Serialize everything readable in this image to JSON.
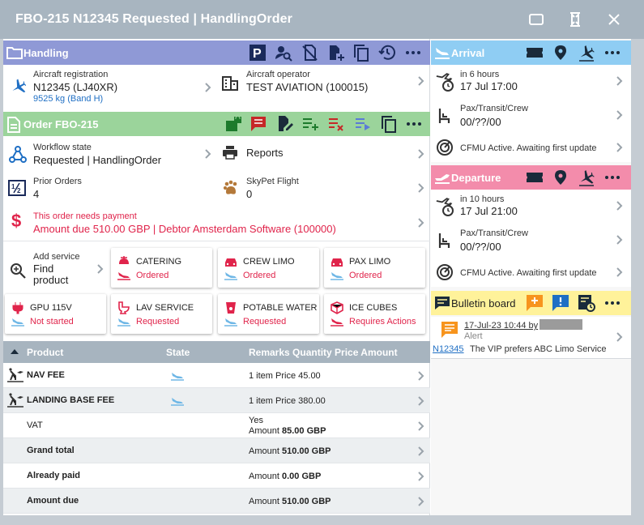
{
  "window": {
    "title": "FBO-215 N12345 Requested | HandlingOrder"
  },
  "colors": {
    "handling": "#8f99d6",
    "order": "#9bd49b",
    "arrival": "#8fcdf3",
    "departure": "#f38cab",
    "bulletin": "#fff29a",
    "alert_red": "#e0244b",
    "table_header": "#a7b4bf"
  },
  "handling": {
    "title": "Handling",
    "aircraft_registration_label": "Aircraft registration",
    "aircraft_registration_value": "N12345 (LJ40XR)",
    "aircraft_weight": "9525 kg (Band H)",
    "aircraft_operator_label": "Aircraft operator",
    "aircraft_operator_value": "TEST AVIATION (100015)"
  },
  "order": {
    "title": "Order FBO-215",
    "workflow_label": "Workflow state",
    "workflow_value": "Requested | HandlingOrder",
    "reports_label": "Reports",
    "prior_orders_label": "Prior Orders",
    "prior_orders_value": "4",
    "skypet_label": "SkyPet Flight",
    "skypet_value": "0",
    "payment_warning": "This order needs payment",
    "amount_due_line": "Amount due 510.00 GBP | Debtor Amsterdam Software (100000)"
  },
  "add_service": {
    "label": "Add service",
    "action": "Find product"
  },
  "services": [
    {
      "name": "CATERING",
      "status": "Ordered"
    },
    {
      "name": "CREW LIMO",
      "status": "Ordered"
    },
    {
      "name": "PAX LIMO",
      "status": "Ordered"
    },
    {
      "name": "GPU 115V",
      "status": "Not started"
    },
    {
      "name": "LAV SERVICE",
      "status": "Requested"
    },
    {
      "name": "POTABLE WATER",
      "status": "Requested"
    },
    {
      "name": "ICE CUBES",
      "status": "Requires Actions"
    }
  ],
  "table": {
    "headers": [
      "Product",
      "State",
      "Remarks Quantity Price Amount"
    ],
    "rows": [
      {
        "product": "NAV FEE",
        "quantity": "1 item",
        "price": "Price 45.00"
      },
      {
        "product": "LANDING BASE FEE",
        "quantity": "1 item",
        "price": "Price 380.00"
      }
    ],
    "vat": {
      "label": "VAT",
      "remark": "Yes",
      "amount_label": "Amount",
      "amount": "85.00 GBP"
    },
    "totals": [
      {
        "label": "Grand total",
        "amount_label": "Amount",
        "amount": "510.00 GBP"
      },
      {
        "label": "Already paid",
        "amount_label": "Amount",
        "amount": "0.00 GBP"
      },
      {
        "label": "Amount due",
        "amount_label": "Amount",
        "amount": "510.00 GBP"
      }
    ]
  },
  "arrival": {
    "title": "Arrival",
    "relative": "in 6 hours",
    "datetime": "17 Jul 17:00",
    "pax_label": "Pax/Transit/Crew",
    "pax_value": "00/??/00",
    "cfmu": "CFMU Active. Awaiting first update"
  },
  "departure": {
    "title": "Departure",
    "relative": "in 10 hours",
    "datetime": "17 Jul 21:00",
    "pax_label": "Pax/Transit/Crew",
    "pax_value": "00/??/00",
    "cfmu": "CFMU Active. Awaiting first update"
  },
  "bulletin": {
    "title": "Bulletin board",
    "item": {
      "date_by": "17-Jul-23 10:44 by",
      "type": "Alert",
      "link": "N12345",
      "text": "The VIP prefers ABC Limo Service"
    }
  }
}
